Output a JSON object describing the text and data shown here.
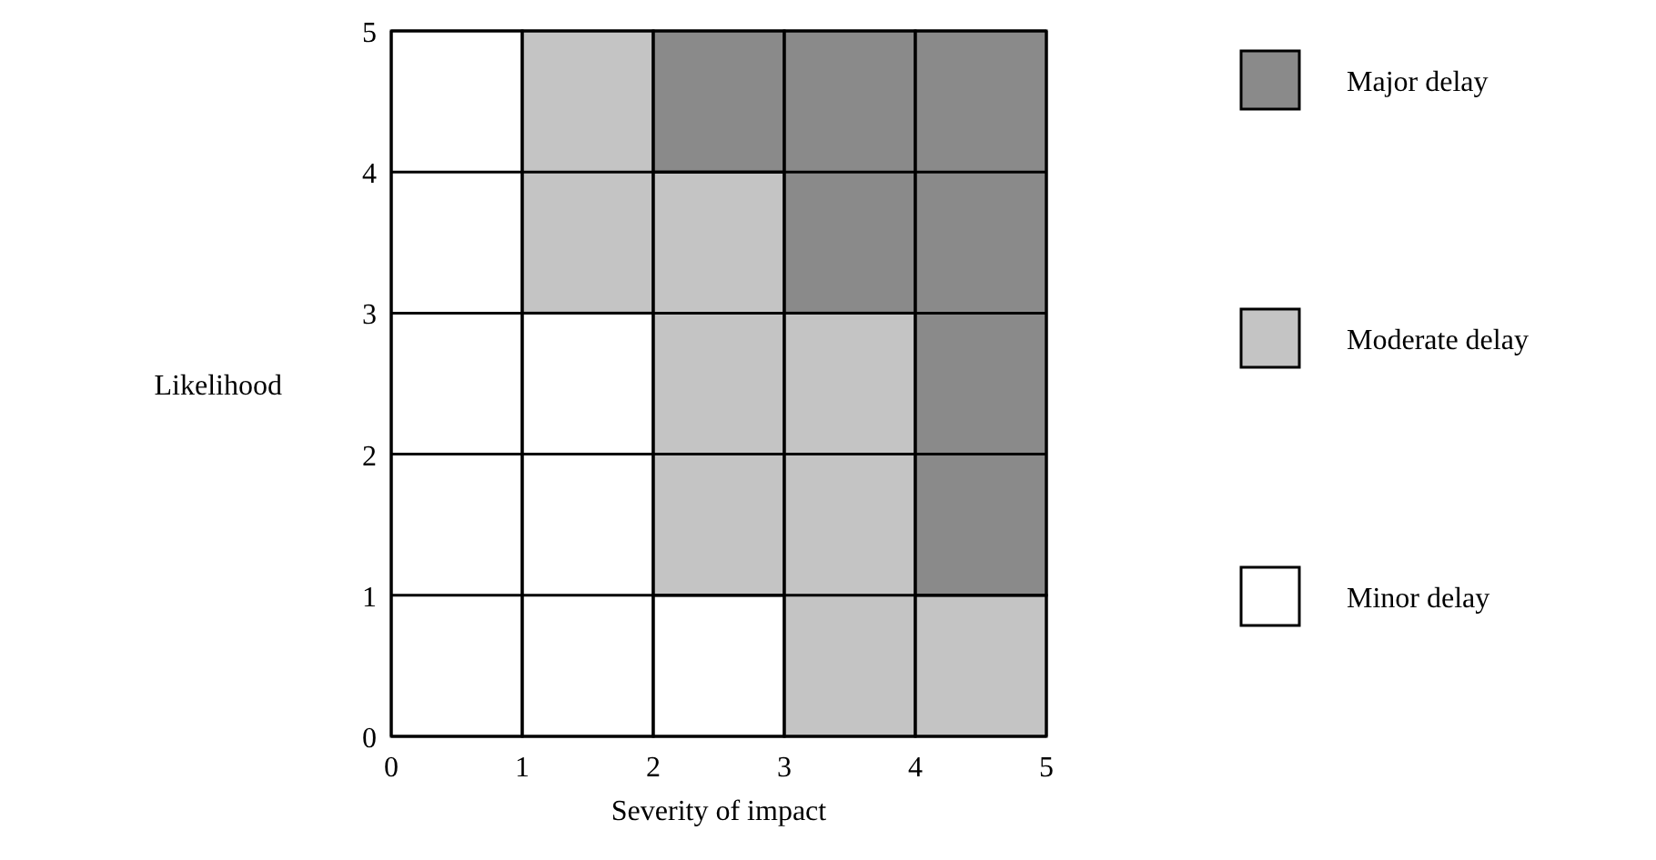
{
  "chart_data": {
    "type": "bar",
    "stacked": true,
    "xlabel": "Severity of impact",
    "ylabel": "Likelihood",
    "x": [
      0.5,
      1.5,
      2.5,
      3.5,
      4.5
    ],
    "xlim": [
      0,
      5
    ],
    "xticks": [
      0,
      1,
      2,
      3,
      4,
      5
    ],
    "ylim": [
      0,
      5
    ],
    "yticks": [
      0,
      1,
      2,
      3,
      4,
      5
    ],
    "series": [
      {
        "name": "Minor delay",
        "color": "#ffffff",
        "values": [
          5,
          3,
          1,
          0,
          0
        ]
      },
      {
        "name": "Moderate delay",
        "color": "#c4c4c4",
        "values": [
          0,
          2,
          3,
          3,
          1
        ]
      },
      {
        "name": "Major delay",
        "color": "#8a8a8a",
        "values": [
          0,
          0,
          1,
          2,
          4
        ]
      }
    ],
    "grid": true,
    "legend": "right"
  }
}
